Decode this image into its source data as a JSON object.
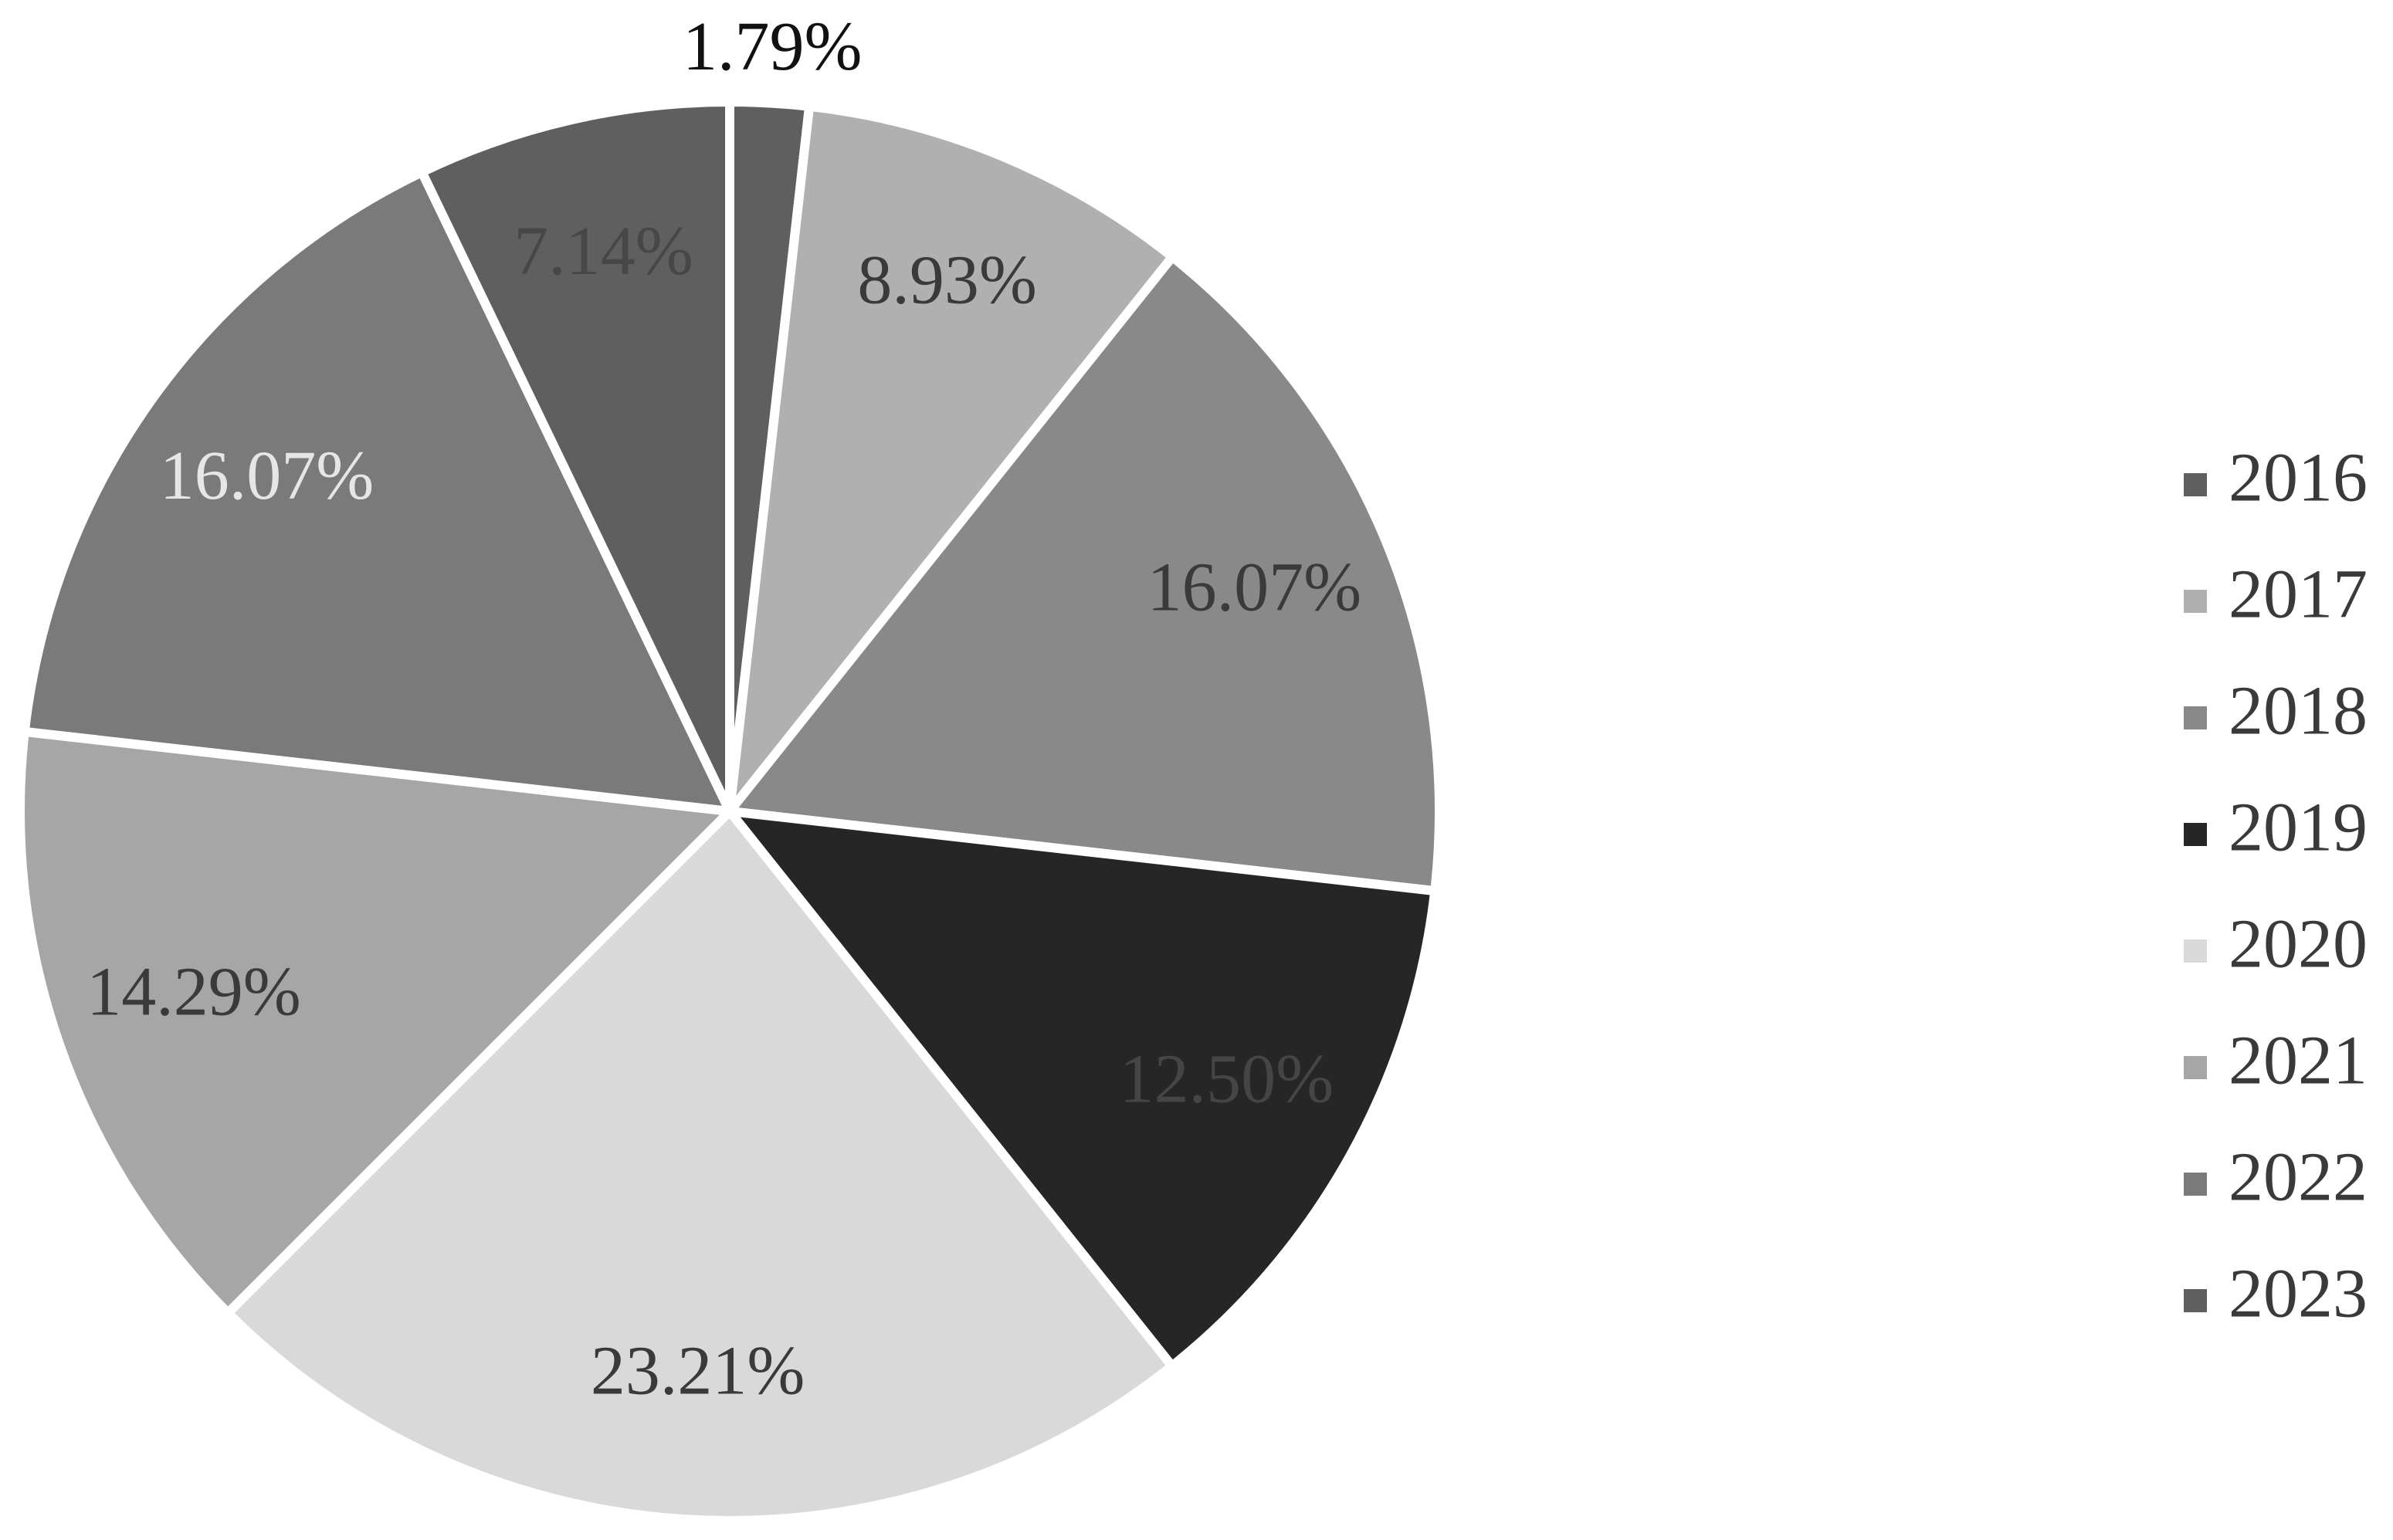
{
  "chart_data": {
    "type": "pie",
    "categories": [
      "2016",
      "2017",
      "2018",
      "2019",
      "2020",
      "2021",
      "2022",
      "2023"
    ],
    "values": [
      1.79,
      8.93,
      16.07,
      12.5,
      23.21,
      14.29,
      16.07,
      7.14
    ],
    "value_labels": [
      "1.79%",
      "8.93%",
      "16.07%",
      "12.50%",
      "23.21%",
      "14.29%",
      "16.07%",
      "7.14%"
    ],
    "colors": [
      "#5f5f5f",
      "#b0b0b0",
      "#898989",
      "#262626",
      "#d9d9d9",
      "#a6a6a6",
      "#7a7a7a",
      "#5f5f5f"
    ],
    "label_colors": [
      "#3a3a3a",
      "#3a3a3a",
      "#3a3a3a",
      "#454545",
      "#3a3a3a",
      "#3a3a3a",
      "#e6e6e6",
      "#474747"
    ],
    "legend": "right"
  }
}
